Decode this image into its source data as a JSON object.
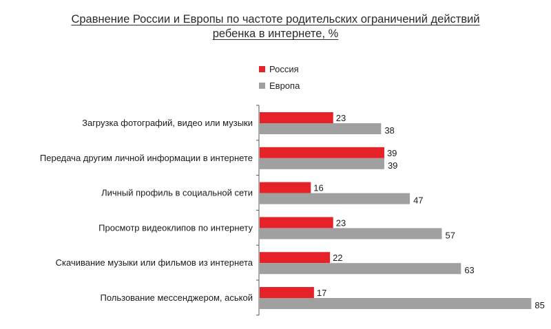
{
  "title": {
    "line1": "Сравнение России и Европы по частоте родительских ограничений действий",
    "line2": "ребенка в интернете, %"
  },
  "colors": {
    "russia": "#e52228",
    "europe": "#a0a0a1",
    "axis": "#555555",
    "text": "#1a1a1a"
  },
  "chart_data": {
    "type": "bar",
    "orientation": "horizontal",
    "title": "Сравнение России и Европы по частоте родительских ограничений действий ребенка в интернете, %",
    "xlabel": "",
    "ylabel": "",
    "xlim": [
      0,
      85
    ],
    "grid": false,
    "legend_position": "top-center",
    "categories": [
      "Загрузка фотографий, видео или музыки",
      "Передача другим личной информации в интернете",
      "Личный профиль в социальной сети",
      "Просмотр видеоклипов по интернету",
      "Скачивание музыки или фильмов из интернета",
      "Пользование мессенджером, аськой"
    ],
    "series": [
      {
        "name": "Россия",
        "values": [
          23,
          39,
          16,
          23,
          22,
          17
        ]
      },
      {
        "name": "Европа",
        "values": [
          38,
          39,
          47,
          57,
          63,
          85
        ]
      }
    ]
  }
}
